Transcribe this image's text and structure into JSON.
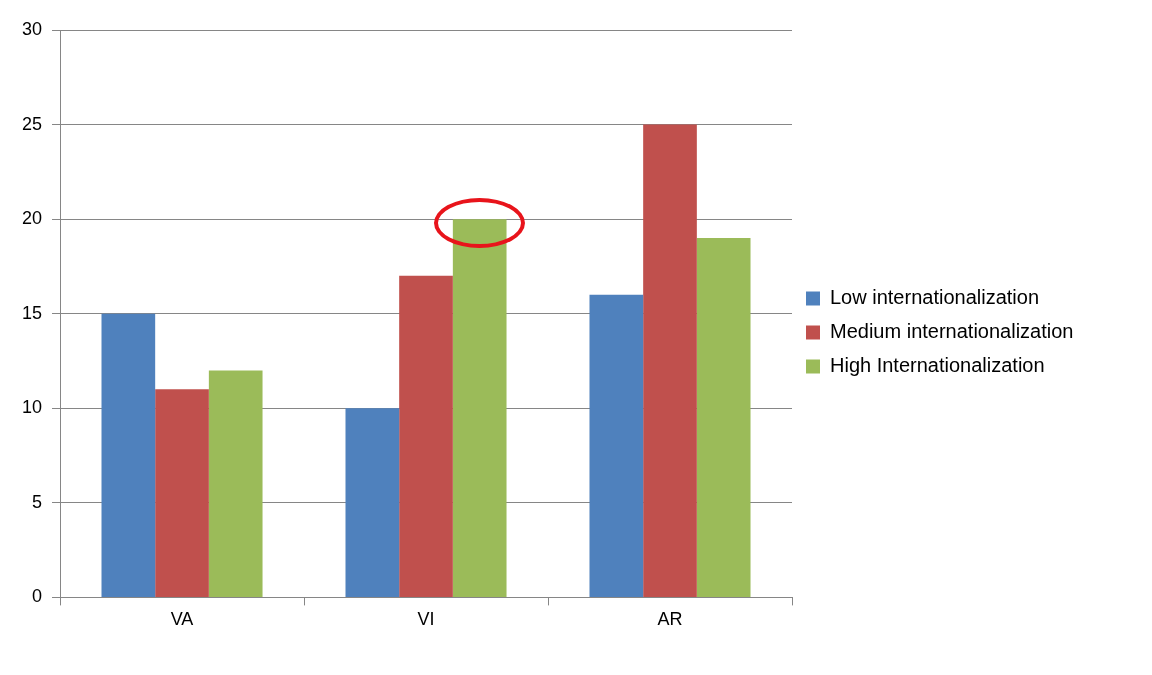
{
  "chart_data": {
    "type": "bar",
    "categories": [
      "VA",
      "VI",
      "AR"
    ],
    "series": [
      {
        "name": "Low internationalization",
        "color": "#4f81bd",
        "values": [
          15,
          10,
          16
        ]
      },
      {
        "name": "Medium internationalization",
        "color": "#c0504d",
        "values": [
          11,
          17,
          25
        ]
      },
      {
        "name": "High Internationalization",
        "color": "#9bbb59",
        "values": [
          12,
          20,
          19
        ]
      }
    ],
    "ylim": [
      0,
      30
    ],
    "yticks": [
      0,
      5,
      10,
      15,
      20,
      25,
      30
    ],
    "grid": "y",
    "legend": "right"
  }
}
